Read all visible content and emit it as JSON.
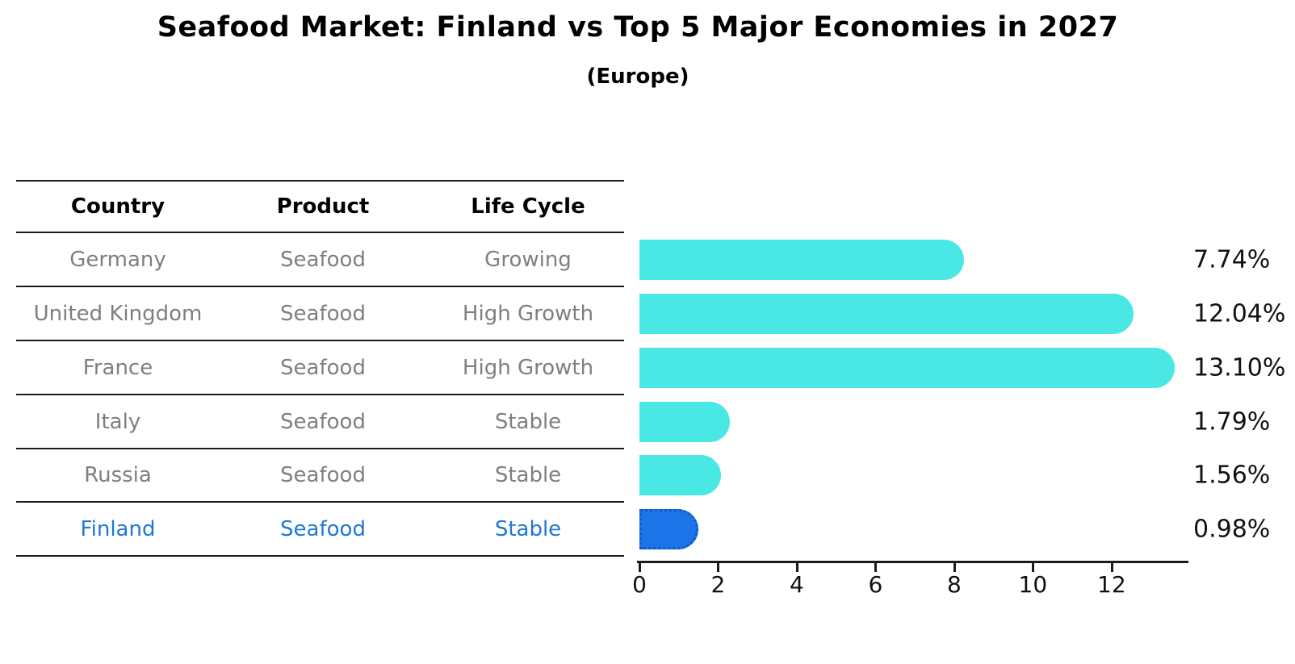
{
  "title": "Seafood Market: Finland vs Top 5 Major Economies in 2027",
  "subtitle": "(Europe)",
  "table": {
    "headers": [
      "Country",
      "Product",
      "Life Cycle"
    ],
    "rows": [
      {
        "country": "Germany",
        "product": "Seafood",
        "life_cycle": "Growing",
        "highlight": false
      },
      {
        "country": "United Kingdom",
        "product": "Seafood",
        "life_cycle": "High Growth",
        "highlight": false
      },
      {
        "country": "France",
        "product": "Seafood",
        "life_cycle": "High Growth",
        "highlight": false
      },
      {
        "country": "Italy",
        "product": "Seafood",
        "life_cycle": "Stable",
        "highlight": false
      },
      {
        "country": "Russia",
        "product": "Seafood",
        "life_cycle": "Stable",
        "highlight": false
      },
      {
        "country": "Finland",
        "product": "Seafood",
        "life_cycle": "Stable",
        "highlight": true
      }
    ]
  },
  "chart_data": {
    "type": "bar",
    "orientation": "horizontal",
    "title": "Seafood Market: Finland vs Top 5 Major Economies in 2027",
    "subtitle": "(Europe)",
    "categories": [
      "Germany",
      "United Kingdom",
      "France",
      "Italy",
      "Russia",
      "Finland"
    ],
    "values": [
      7.74,
      12.04,
      13.1,
      1.79,
      1.56,
      0.98
    ],
    "value_labels": [
      "7.74%",
      "12.04%",
      "13.10%",
      "1.79%",
      "1.56%",
      "0.98%"
    ],
    "xlabel": "",
    "ylabel": "",
    "xlim": [
      0,
      13.87
    ],
    "xticks": [
      0,
      2,
      4,
      6,
      8,
      10,
      12
    ],
    "grid": false,
    "legend": null,
    "bar_style": "rounded-right-cap",
    "highlight_category": "Finland"
  },
  "colors": {
    "bar_default": "#49E8E4",
    "bar_highlight": "#1B75E8",
    "bar_highlight_border": "#1257C5",
    "row_text": "#7F7F7F",
    "highlight_text": "#1F77D4",
    "heading_text": "#000000",
    "axis": "#1A1A1A"
  }
}
